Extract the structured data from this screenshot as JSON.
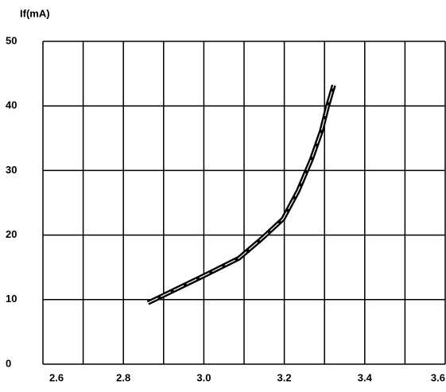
{
  "chart_data": {
    "type": "line",
    "title": "If(mA)",
    "x": [
      2.861,
      3.0,
      3.087,
      3.145,
      3.197,
      3.234,
      3.268,
      3.292,
      3.307,
      3.323
    ],
    "values": [
      9.5,
      13.7,
      16.4,
      19.5,
      22.5,
      26.8,
      31.8,
      36.1,
      39.8,
      43.2
    ],
    "color": "#000000",
    "xlim": [
      2.6,
      3.6
    ],
    "xticks": [
      2.6,
      2.8,
      {
        "value": 3,
        "label": "3.0"
      },
      3.2,
      3.4,
      3.6
    ],
    "xgridlines": [
      2.6,
      2.7,
      2.8,
      2.9,
      3,
      3.1,
      3.2,
      3.3,
      3.4,
      3.5,
      3.6
    ],
    "ylim": [
      0,
      50
    ],
    "yticks": [
      0,
      10,
      20,
      30,
      40,
      50
    ],
    "grid": true
  }
}
